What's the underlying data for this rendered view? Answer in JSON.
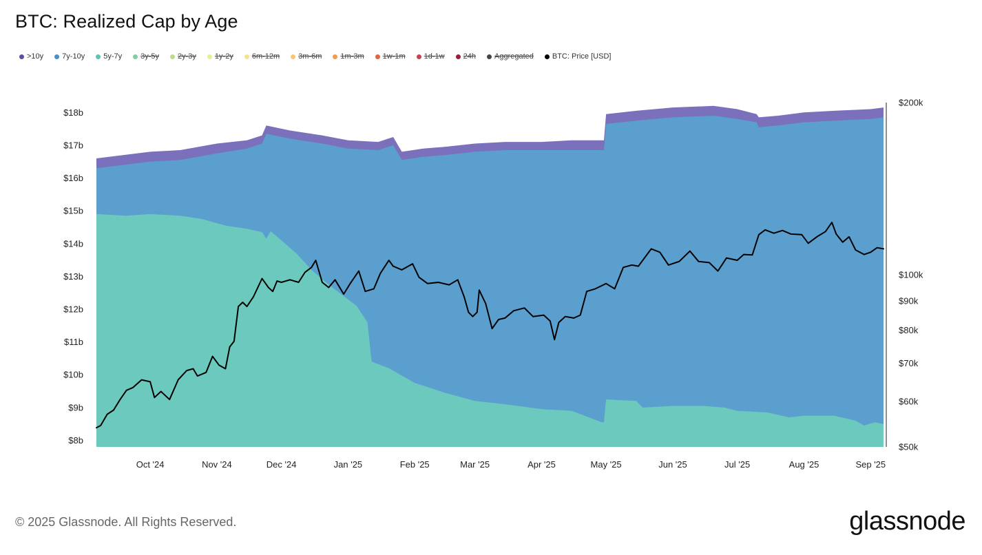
{
  "header": {
    "title": "BTC: Realized Cap by Age"
  },
  "legend": [
    {
      "label": ">10y",
      "color": "#5a4fa6",
      "enabled": true
    },
    {
      "label": "7y-10y",
      "color": "#4a90c8",
      "enabled": true
    },
    {
      "label": "5y-7y",
      "color": "#5bc6b0",
      "enabled": true
    },
    {
      "label": "3y-5y",
      "color": "#7ecf9a",
      "enabled": false
    },
    {
      "label": "2y-3y",
      "color": "#b9df84",
      "enabled": false
    },
    {
      "label": "1y-2y",
      "color": "#e8ef91",
      "enabled": false
    },
    {
      "label": "6m-12m",
      "color": "#f6e38c",
      "enabled": false
    },
    {
      "label": "3m-6m",
      "color": "#f7c86a",
      "enabled": false
    },
    {
      "label": "1m-3m",
      "color": "#f59a4a",
      "enabled": false
    },
    {
      "label": "1w-1m",
      "color": "#e5643d",
      "enabled": false
    },
    {
      "label": "1d-1w",
      "color": "#cc3f52",
      "enabled": false
    },
    {
      "label": "24h",
      "color": "#9b1d3a",
      "enabled": false
    },
    {
      "label": "Aggregated",
      "color": "#444444",
      "enabled": false
    },
    {
      "label": "BTC: Price [USD]",
      "color": "#000000",
      "enabled": true
    }
  ],
  "chart_data": {
    "type": "area",
    "title": "BTC: Realized Cap by Age",
    "grid": false,
    "legend_position": "top-left",
    "x_axis": {
      "type": "date",
      "range": [
        "2024-09-06",
        "2025-09-07"
      ],
      "tick_labels": [
        "Oct '24",
        "Nov '24",
        "Dec '24",
        "Jan '25",
        "Feb '25",
        "Mar '25",
        "Apr '25",
        "May '25",
        "Jun '25",
        "Jul '25",
        "Aug '25",
        "Sep '25"
      ],
      "tick_dates": [
        "2024-10-01",
        "2024-11-01",
        "2024-12-01",
        "2025-01-01",
        "2025-02-01",
        "2025-03-01",
        "2025-04-01",
        "2025-05-01",
        "2025-06-01",
        "2025-07-01",
        "2025-08-01",
        "2025-09-01"
      ]
    },
    "y_left": {
      "unit": "USD billions",
      "range": [
        7.8,
        18.3
      ],
      "ticks": [
        8,
        9,
        10,
        11,
        12,
        13,
        14,
        15,
        16,
        17,
        18
      ],
      "tick_labels": [
        "$8b",
        "$9b",
        "$10b",
        "$11b",
        "$12b",
        "$13b",
        "$14b",
        "$15b",
        "$16b",
        "$17b",
        "$18b"
      ]
    },
    "y_right": {
      "scale": "log",
      "range": [
        50000,
        200000
      ],
      "ticks": [
        50000,
        60000,
        70000,
        80000,
        90000,
        100000,
        200000
      ],
      "tick_labels": [
        "$50k",
        "$60k",
        "$70k",
        "$80k",
        "$90k",
        "$100k",
        "$200k"
      ]
    },
    "stack_series": [
      {
        "name": "5y-7y",
        "color": "#6cc9bd",
        "points": [
          [
            "2024-09-06",
            14.9
          ],
          [
            "2024-09-20",
            14.85
          ],
          [
            "2024-10-01",
            14.9
          ],
          [
            "2024-10-15",
            14.85
          ],
          [
            "2024-10-25",
            14.75
          ],
          [
            "2024-11-05",
            14.55
          ],
          [
            "2024-11-15",
            14.45
          ],
          [
            "2024-11-22",
            14.35
          ],
          [
            "2024-11-24",
            14.15
          ],
          [
            "2024-11-26",
            14.38
          ],
          [
            "2024-12-01",
            14.1
          ],
          [
            "2024-12-08",
            13.7
          ],
          [
            "2024-12-15",
            13.2
          ],
          [
            "2024-12-22",
            12.8
          ],
          [
            "2024-12-29",
            12.45
          ],
          [
            "2025-01-05",
            12.1
          ],
          [
            "2025-01-10",
            11.6
          ],
          [
            "2025-01-12",
            10.4
          ],
          [
            "2025-01-20",
            10.2
          ],
          [
            "2025-02-01",
            9.75
          ],
          [
            "2025-02-15",
            9.45
          ],
          [
            "2025-03-01",
            9.2
          ],
          [
            "2025-03-15",
            9.1
          ],
          [
            "2025-04-01",
            8.95
          ],
          [
            "2025-04-15",
            8.9
          ],
          [
            "2025-04-25",
            8.65
          ],
          [
            "2025-04-29",
            8.55
          ],
          [
            "2025-04-30",
            8.55
          ],
          [
            "2025-05-01",
            9.25
          ],
          [
            "2025-05-15",
            9.2
          ],
          [
            "2025-05-18",
            9.0
          ],
          [
            "2025-06-01",
            9.05
          ],
          [
            "2025-06-15",
            9.05
          ],
          [
            "2025-06-25",
            9.0
          ],
          [
            "2025-07-01",
            8.9
          ],
          [
            "2025-07-15",
            8.85
          ],
          [
            "2025-07-25",
            8.7
          ],
          [
            "2025-08-01",
            8.75
          ],
          [
            "2025-08-15",
            8.75
          ],
          [
            "2025-08-25",
            8.6
          ],
          [
            "2025-08-29",
            8.45
          ],
          [
            "2025-09-03",
            8.55
          ],
          [
            "2025-09-07",
            8.5
          ]
        ]
      },
      {
        "name": "7y-10y",
        "color": "#5b9fce",
        "points": [
          [
            "2024-09-06",
            16.3
          ],
          [
            "2024-10-01",
            16.5
          ],
          [
            "2024-10-15",
            16.55
          ],
          [
            "2024-11-01",
            16.75
          ],
          [
            "2024-11-15",
            16.9
          ],
          [
            "2024-11-22",
            17.05
          ],
          [
            "2024-11-24",
            17.35
          ],
          [
            "2024-12-05",
            17.2
          ],
          [
            "2024-12-20",
            17.05
          ],
          [
            "2025-01-01",
            16.9
          ],
          [
            "2025-01-15",
            16.85
          ],
          [
            "2025-01-22",
            17.0
          ],
          [
            "2025-01-26",
            16.55
          ],
          [
            "2025-02-05",
            16.65
          ],
          [
            "2025-02-15",
            16.7
          ],
          [
            "2025-03-01",
            16.8
          ],
          [
            "2025-03-15",
            16.85
          ],
          [
            "2025-04-01",
            16.85
          ],
          [
            "2025-04-15",
            16.85
          ],
          [
            "2025-04-30",
            16.85
          ],
          [
            "2025-05-01",
            17.65
          ],
          [
            "2025-05-15",
            17.75
          ],
          [
            "2025-06-01",
            17.85
          ],
          [
            "2025-06-20",
            17.9
          ],
          [
            "2025-07-01",
            17.8
          ],
          [
            "2025-07-10",
            17.7
          ],
          [
            "2025-07-11",
            17.55
          ],
          [
            "2025-07-20",
            17.6
          ],
          [
            "2025-08-01",
            17.7
          ],
          [
            "2025-08-15",
            17.75
          ],
          [
            "2025-09-01",
            17.8
          ],
          [
            "2025-09-07",
            17.85
          ]
        ]
      },
      {
        "name": ">10y",
        "color": "#7a70bb",
        "points": [
          [
            "2024-09-06",
            16.6
          ],
          [
            "2024-10-01",
            16.8
          ],
          [
            "2024-10-15",
            16.85
          ],
          [
            "2024-11-01",
            17.05
          ],
          [
            "2024-11-15",
            17.15
          ],
          [
            "2024-11-22",
            17.3
          ],
          [
            "2024-11-24",
            17.6
          ],
          [
            "2024-12-05",
            17.45
          ],
          [
            "2024-12-20",
            17.3
          ],
          [
            "2025-01-01",
            17.15
          ],
          [
            "2025-01-15",
            17.1
          ],
          [
            "2025-01-22",
            17.25
          ],
          [
            "2025-01-26",
            16.8
          ],
          [
            "2025-02-05",
            16.9
          ],
          [
            "2025-02-15",
            16.95
          ],
          [
            "2025-03-01",
            17.05
          ],
          [
            "2025-03-15",
            17.1
          ],
          [
            "2025-04-01",
            17.1
          ],
          [
            "2025-04-15",
            17.15
          ],
          [
            "2025-04-30",
            17.15
          ],
          [
            "2025-05-01",
            17.95
          ],
          [
            "2025-05-15",
            18.05
          ],
          [
            "2025-06-01",
            18.15
          ],
          [
            "2025-06-20",
            18.2
          ],
          [
            "2025-07-01",
            18.1
          ],
          [
            "2025-07-10",
            17.95
          ],
          [
            "2025-07-11",
            17.85
          ],
          [
            "2025-07-20",
            17.9
          ],
          [
            "2025-08-01",
            18.0
          ],
          [
            "2025-08-15",
            18.05
          ],
          [
            "2025-09-01",
            18.1
          ],
          [
            "2025-09-07",
            18.15
          ]
        ]
      }
    ],
    "line_series": [
      {
        "name": "BTC: Price [USD]",
        "color": "#000000",
        "axis": "right",
        "points": [
          [
            "2024-09-06",
            54000
          ],
          [
            "2024-09-08",
            54500
          ],
          [
            "2024-09-11",
            57000
          ],
          [
            "2024-09-14",
            58000
          ],
          [
            "2024-09-17",
            60500
          ],
          [
            "2024-09-20",
            62800
          ],
          [
            "2024-09-23",
            63500
          ],
          [
            "2024-09-27",
            65500
          ],
          [
            "2024-10-01",
            65000
          ],
          [
            "2024-10-03",
            61000
          ],
          [
            "2024-10-06",
            62500
          ],
          [
            "2024-10-10",
            60500
          ],
          [
            "2024-10-14",
            65500
          ],
          [
            "2024-10-18",
            68000
          ],
          [
            "2024-10-21",
            68500
          ],
          [
            "2024-10-23",
            66500
          ],
          [
            "2024-10-27",
            67500
          ],
          [
            "2024-10-30",
            72000
          ],
          [
            "2024-11-02",
            69500
          ],
          [
            "2024-11-05",
            68500
          ],
          [
            "2024-11-07",
            74800
          ],
          [
            "2024-11-09",
            76500
          ],
          [
            "2024-11-11",
            88000
          ],
          [
            "2024-11-13",
            89500
          ],
          [
            "2024-11-15",
            88000
          ],
          [
            "2024-11-18",
            91500
          ],
          [
            "2024-11-22",
            98500
          ],
          [
            "2024-11-25",
            95000
          ],
          [
            "2024-11-27",
            93500
          ],
          [
            "2024-11-29",
            97500
          ],
          [
            "2024-12-01",
            97000
          ],
          [
            "2024-12-05",
            98000
          ],
          [
            "2024-12-09",
            97000
          ],
          [
            "2024-12-12",
            101000
          ],
          [
            "2024-12-15",
            103000
          ],
          [
            "2024-12-17",
            106000
          ],
          [
            "2024-12-20",
            97000
          ],
          [
            "2024-12-23",
            95000
          ],
          [
            "2024-12-26",
            98000
          ],
          [
            "2024-12-30",
            92500
          ],
          [
            "2025-01-02",
            96500
          ],
          [
            "2025-01-06",
            101500
          ],
          [
            "2025-01-09",
            93500
          ],
          [
            "2025-01-13",
            94500
          ],
          [
            "2025-01-16",
            100500
          ],
          [
            "2025-01-20",
            106000
          ],
          [
            "2025-01-22",
            103500
          ],
          [
            "2025-01-26",
            102000
          ],
          [
            "2025-01-31",
            104500
          ],
          [
            "2025-02-03",
            99000
          ],
          [
            "2025-02-07",
            96500
          ],
          [
            "2025-02-12",
            97000
          ],
          [
            "2025-02-17",
            96000
          ],
          [
            "2025-02-21",
            98000
          ],
          [
            "2025-02-24",
            91500
          ],
          [
            "2025-02-26",
            86000
          ],
          [
            "2025-02-28",
            84500
          ],
          [
            "2025-03-02",
            86000
          ],
          [
            "2025-03-03",
            94000
          ],
          [
            "2025-03-06",
            89000
          ],
          [
            "2025-03-09",
            80500
          ],
          [
            "2025-03-12",
            83500
          ],
          [
            "2025-03-15",
            84000
          ],
          [
            "2025-03-19",
            86500
          ],
          [
            "2025-03-24",
            87500
          ],
          [
            "2025-03-28",
            84500
          ],
          [
            "2025-04-02",
            85000
          ],
          [
            "2025-04-05",
            83000
          ],
          [
            "2025-04-07",
            77000
          ],
          [
            "2025-04-09",
            82500
          ],
          [
            "2025-04-12",
            84500
          ],
          [
            "2025-04-16",
            84000
          ],
          [
            "2025-04-19",
            85000
          ],
          [
            "2025-04-22",
            93500
          ],
          [
            "2025-04-26",
            94500
          ],
          [
            "2025-05-01",
            96500
          ],
          [
            "2025-05-05",
            94500
          ],
          [
            "2025-05-09",
            103000
          ],
          [
            "2025-05-13",
            104000
          ],
          [
            "2025-05-16",
            103500
          ],
          [
            "2025-05-22",
            111000
          ],
          [
            "2025-05-26",
            109500
          ],
          [
            "2025-05-30",
            104000
          ],
          [
            "2025-06-04",
            105500
          ],
          [
            "2025-06-09",
            110000
          ],
          [
            "2025-06-13",
            105500
          ],
          [
            "2025-06-18",
            105000
          ],
          [
            "2025-06-22",
            101500
          ],
          [
            "2025-06-26",
            107000
          ],
          [
            "2025-07-01",
            106000
          ],
          [
            "2025-07-04",
            108500
          ],
          [
            "2025-07-08",
            108300
          ],
          [
            "2025-07-11",
            117500
          ],
          [
            "2025-07-14",
            119800
          ],
          [
            "2025-07-18",
            118200
          ],
          [
            "2025-07-22",
            119500
          ],
          [
            "2025-07-26",
            117800
          ],
          [
            "2025-07-31",
            117500
          ],
          [
            "2025-08-03",
            113500
          ],
          [
            "2025-08-07",
            116500
          ],
          [
            "2025-08-11",
            119000
          ],
          [
            "2025-08-14",
            123500
          ],
          [
            "2025-08-16",
            117800
          ],
          [
            "2025-08-19",
            114000
          ],
          [
            "2025-08-22",
            116500
          ],
          [
            "2025-08-25",
            110500
          ],
          [
            "2025-08-29",
            108500
          ],
          [
            "2025-09-01",
            109500
          ],
          [
            "2025-09-04",
            111500
          ],
          [
            "2025-09-07",
            111000
          ]
        ]
      }
    ]
  },
  "footer": {
    "copyright": "© 2025 Glassnode. All Rights Reserved.",
    "logo": "glassnode",
    "watermark": "glassnode"
  }
}
